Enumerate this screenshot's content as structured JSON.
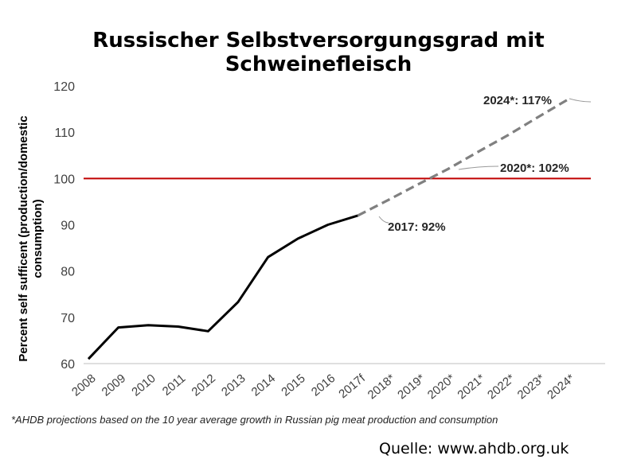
{
  "chart_data": {
    "type": "line",
    "title": "Russischer Selbstversorgungsgrad mit Schweinefleisch",
    "ylabel_line1": "Percent self sufficent (production/domestic",
    "ylabel_line2": "consumption)",
    "ylim": [
      60,
      120
    ],
    "yticks": [
      60,
      70,
      80,
      90,
      100,
      110,
      120
    ],
    "categories": [
      "2008",
      "2009",
      "2010",
      "2011",
      "2012",
      "2013",
      "2014",
      "2015",
      "2016",
      "2017f",
      "2018*",
      "2019*",
      "2020*",
      "2021*",
      "2022*",
      "2023*",
      "2024*"
    ],
    "series": [
      {
        "name": "",
        "style": "solid",
        "color": "#000000",
        "values": [
          61,
          67.8,
          68.3,
          68,
          67,
          73.3,
          83,
          87,
          90,
          92,
          null,
          null,
          null,
          null,
          null,
          null,
          null
        ]
      },
      {
        "name": "",
        "style": "dashed",
        "color": "#808080",
        "values": [
          null,
          null,
          null,
          null,
          null,
          null,
          null,
          null,
          null,
          92,
          95.3,
          98.7,
          102,
          105.7,
          109.3,
          113.2,
          117
        ]
      }
    ],
    "reference_line": {
      "value": 100,
      "color": "#c00000"
    },
    "annotations": [
      {
        "text": "2017: 92%",
        "category": "2017f",
        "value": 92
      },
      {
        "text": "2020*: 102%",
        "category": "2020*",
        "value": 102
      },
      {
        "text": "2024*: 117%",
        "category": "2024*",
        "value": 117
      }
    ],
    "grid": false
  },
  "footnote": "*AHDB projections based on the 10 year average growth in Russian pig meat production and consumption",
  "source": "Quelle: www.ahdb.org.uk"
}
